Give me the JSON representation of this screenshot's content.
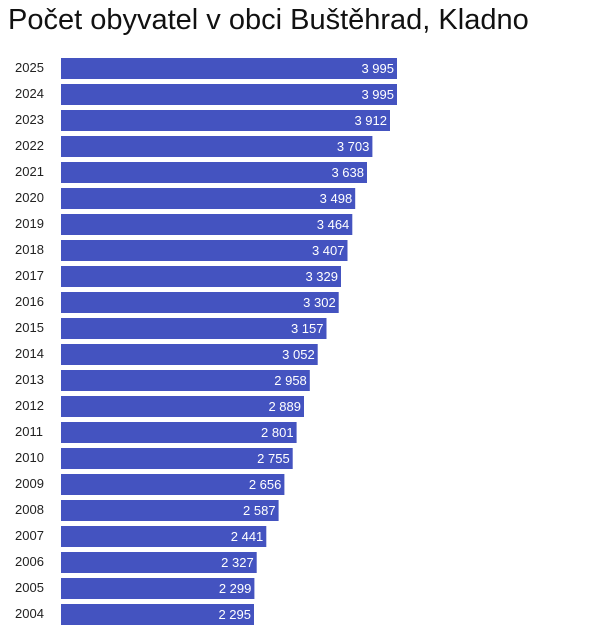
{
  "chart_data": {
    "type": "bar",
    "orientation": "horizontal",
    "title": "Počet obyvatel v obci Buštěhrad, Kladno",
    "categories": [
      "2025",
      "2024",
      "2023",
      "2022",
      "2021",
      "2020",
      "2019",
      "2018",
      "2017",
      "2016",
      "2015",
      "2014",
      "2013",
      "2012",
      "2011",
      "2010",
      "2009",
      "2008",
      "2007",
      "2006",
      "2005",
      "2004"
    ],
    "values": [
      3995,
      3995,
      3912,
      3703,
      3638,
      3498,
      3464,
      3407,
      3329,
      3302,
      3157,
      3052,
      2958,
      2889,
      2801,
      2755,
      2656,
      2587,
      2441,
      2327,
      2299,
      2295
    ],
    "value_labels": [
      "3 995",
      "3 995",
      "3 912",
      "3 703",
      "3 638",
      "3 498",
      "3 464",
      "3 407",
      "3 329",
      "3 302",
      "3 157",
      "3 052",
      "2 958",
      "2 889",
      "2 801",
      "2 755",
      "2 656",
      "2 587",
      "2 441",
      "2 327",
      "2 299",
      "2 295"
    ],
    "xlim": [
      0,
      3995
    ],
    "bar_color": "#4453c0",
    "grid": false,
    "legend": "none"
  }
}
